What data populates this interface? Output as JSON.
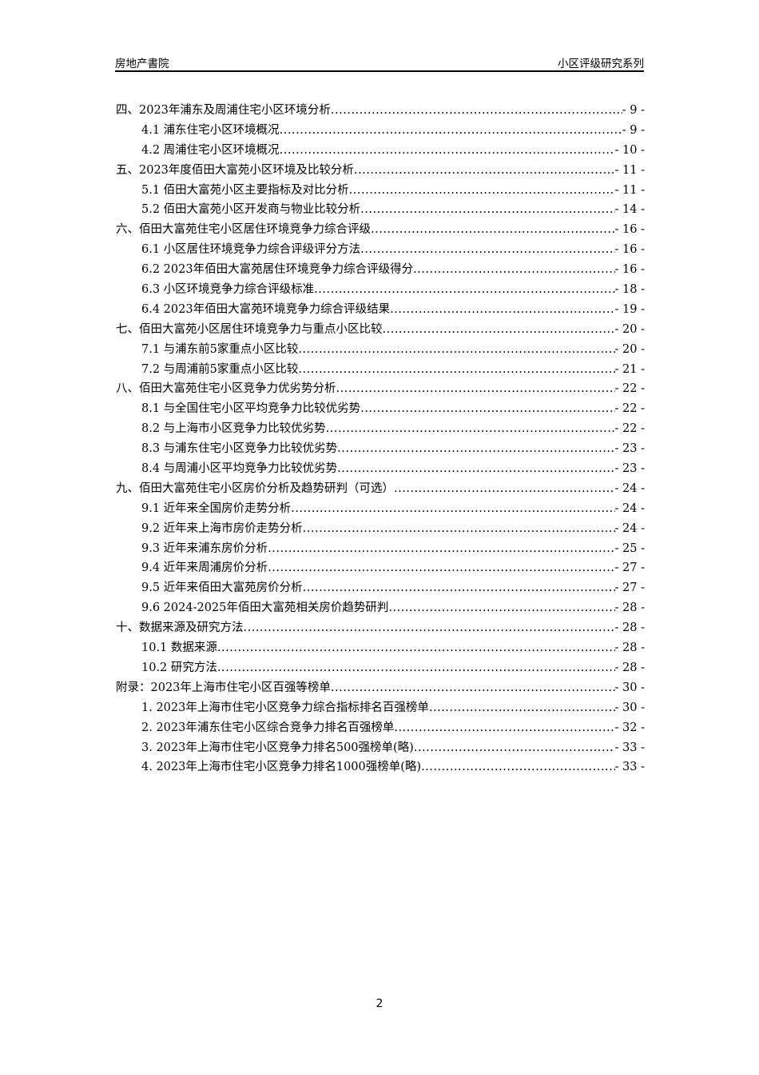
{
  "header": {
    "left": "房地产書院",
    "right": "小区评级研究系列"
  },
  "toc": [
    {
      "level": 1,
      "title": "四、2023年浦东及周浦住宅小区环境分析",
      "page": "- 9 -"
    },
    {
      "level": 2,
      "title": "4.1 浦东住宅小区环境概况",
      "page": "- 9 -"
    },
    {
      "level": 2,
      "title": "4.2 周浦住宅小区环境概况",
      "page": "- 10 -"
    },
    {
      "level": 1,
      "title": "五、2023年度佰田大富苑小区环境及比较分析",
      "page": "- 11 -"
    },
    {
      "level": 2,
      "title": "5.1 佰田大富苑小区主要指标及对比分析",
      "page": "- 11 -"
    },
    {
      "level": 2,
      "title": "5.2 佰田大富苑小区开发商与物业比较分析",
      "page": "- 14 -"
    },
    {
      "level": 1,
      "title": "六、佰田大富苑住宅小区居住环境竞争力综合评级",
      "page": "- 16 -"
    },
    {
      "level": 2,
      "title": "6.1 小区居住环境竞争力综合评级评分方法",
      "page": "- 16 -"
    },
    {
      "level": 2,
      "title": "6.2 2023年佰田大富苑居住环境竞争力综合评级得分",
      "page": "- 16 -"
    },
    {
      "level": 2,
      "title": "6.3 小区环境竞争力综合评级标准",
      "page": "- 18 -"
    },
    {
      "level": 2,
      "title": "6.4 2023年佰田大富苑环境竞争力综合评级结果",
      "page": "- 19 -"
    },
    {
      "level": 1,
      "title": "七、佰田大富苑小区居住环境竞争力与重点小区比较",
      "page": "- 20 -"
    },
    {
      "level": 2,
      "title": "7.1 与浦东前5家重点小区比较",
      "page": "- 20 -"
    },
    {
      "level": 2,
      "title": "7.2 与周浦前5家重点小区比较",
      "page": "- 21 -"
    },
    {
      "level": 1,
      "title": "八、佰田大富苑住宅小区竞争力优劣势分析",
      "page": "- 22 -"
    },
    {
      "level": 2,
      "title": "8.1 与全国住宅小区平均竞争力比较优劣势",
      "page": "- 22 -"
    },
    {
      "level": 2,
      "title": "8.2 与上海市小区竞争力比较优劣势",
      "page": "- 22 -"
    },
    {
      "level": 2,
      "title": "8.3 与浦东住宅小区竞争力比较优劣势",
      "page": "- 23 -"
    },
    {
      "level": 2,
      "title": "8.4 与周浦小区平均竞争力比较优劣势",
      "page": "- 23 -"
    },
    {
      "level": 1,
      "title": "九、佰田大富苑住宅小区房价分析及趋势研判（可选）",
      "page": "- 24 -"
    },
    {
      "level": 2,
      "title": "9.1 近年来全国房价走势分析",
      "page": "- 24 -"
    },
    {
      "level": 2,
      "title": "9.2 近年来上海市房价走势分析",
      "page": "- 24 -"
    },
    {
      "level": 2,
      "title": "9.3 近年来浦东房价分析",
      "page": "- 25 -"
    },
    {
      "level": 2,
      "title": "9.4 近年来周浦房价分析",
      "page": "- 27 -"
    },
    {
      "level": 2,
      "title": "9.5 近年来佰田大富苑房价分析",
      "page": "- 27 -"
    },
    {
      "level": 2,
      "title": "9.6 2024-2025年佰田大富苑相关房价趋势研判",
      "page": "- 28 -"
    },
    {
      "level": 1,
      "title": "十、数据来源及研究方法",
      "page": "- 28 -"
    },
    {
      "level": 2,
      "title": "10.1 数据来源",
      "page": "- 28 -"
    },
    {
      "level": 2,
      "title": "10.2 研究方法",
      "page": "- 28 -"
    },
    {
      "level": 1,
      "title": "附录：2023年上海市住宅小区百强等榜单",
      "page": "- 30 -"
    },
    {
      "level": 2,
      "title": "1.  2023年上海市住宅小区竞争力综合指标排名百强榜单",
      "page": "- 30 -"
    },
    {
      "level": 2,
      "title": "2.  2023年浦东住宅小区综合竞争力排名百强榜单",
      "page": "- 32 -"
    },
    {
      "level": 2,
      "title": "3.  2023年上海市住宅小区竞争力排名500强榜单(略)",
      "page": "- 33 -"
    },
    {
      "level": 2,
      "title": "4.  2023年上海市住宅小区竞争力排名1000强榜单(略)",
      "page": "- 33 -"
    }
  ],
  "footer": {
    "page_number": "2"
  }
}
